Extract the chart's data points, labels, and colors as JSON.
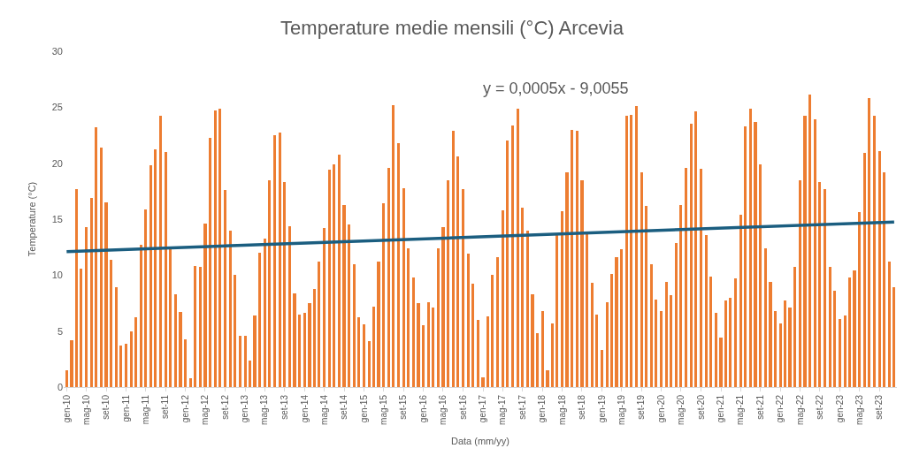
{
  "chart_data": {
    "type": "bar",
    "title": "Temperature medie mensili (°C) Arcevia",
    "xlabel": "Data (mm/yy)",
    "ylabel": "Temperature (°C)",
    "annotations": [
      "y = 0,0005x - 9,0055"
    ],
    "x": [
      "2010-01",
      "2010-02",
      "2010-03",
      "2010-04",
      "2010-05",
      "2010-06",
      "2010-07",
      "2010-08",
      "2010-09",
      "2010-10",
      "2010-11",
      "2010-12",
      "2011-01",
      "2011-02",
      "2011-03",
      "2011-04",
      "2011-05",
      "2011-06",
      "2011-07",
      "2011-08",
      "2011-09",
      "2011-10",
      "2011-11",
      "2011-12",
      "2012-01",
      "2012-02",
      "2012-03",
      "2012-04",
      "2012-05",
      "2012-06",
      "2012-07",
      "2012-08",
      "2012-09",
      "2012-10",
      "2012-11",
      "2012-12",
      "2013-01",
      "2013-02",
      "2013-03",
      "2013-04",
      "2013-05",
      "2013-06",
      "2013-07",
      "2013-08",
      "2013-09",
      "2013-10",
      "2013-11",
      "2013-12",
      "2014-01",
      "2014-02",
      "2014-03",
      "2014-04",
      "2014-05",
      "2014-06",
      "2014-07",
      "2014-08",
      "2014-09",
      "2014-10",
      "2014-11",
      "2014-12",
      "2015-01",
      "2015-02",
      "2015-03",
      "2015-04",
      "2015-05",
      "2015-06",
      "2015-07",
      "2015-08",
      "2015-09",
      "2015-10",
      "2015-11",
      "2015-12",
      "2016-01",
      "2016-02",
      "2016-03",
      "2016-04",
      "2016-05",
      "2016-06",
      "2016-07",
      "2016-08",
      "2016-09",
      "2016-10",
      "2016-11",
      "2016-12",
      "2017-01",
      "2017-02",
      "2017-03",
      "2017-04",
      "2017-05",
      "2017-06",
      "2017-07",
      "2017-08",
      "2017-09",
      "2017-10",
      "2017-11",
      "2017-12",
      "2018-01",
      "2018-02",
      "2018-03",
      "2018-04",
      "2018-05",
      "2018-06",
      "2018-07",
      "2018-08",
      "2018-09",
      "2018-10",
      "2018-11",
      "2018-12",
      "2019-01",
      "2019-02",
      "2019-03",
      "2019-04",
      "2019-05",
      "2019-06",
      "2019-07",
      "2019-08",
      "2019-09",
      "2019-10",
      "2019-11",
      "2019-12",
      "2020-01",
      "2020-02",
      "2020-03",
      "2020-04",
      "2020-05",
      "2020-06",
      "2020-07",
      "2020-08",
      "2020-09",
      "2020-10",
      "2020-11",
      "2020-12",
      "2021-01",
      "2021-02",
      "2021-03",
      "2021-04",
      "2021-05",
      "2021-06",
      "2021-07",
      "2021-08",
      "2021-09",
      "2021-10",
      "2021-11",
      "2021-12",
      "2022-01",
      "2022-02",
      "2022-03",
      "2022-04",
      "2022-05",
      "2022-06",
      "2022-07",
      "2022-08",
      "2022-09",
      "2022-10",
      "2022-11",
      "2022-12",
      "2023-01",
      "2023-02",
      "2023-03",
      "2023-04",
      "2023-05",
      "2023-06",
      "2023-07",
      "2023-08",
      "2023-09",
      "2023-10",
      "2023-11",
      "2023-12"
    ],
    "series": [
      {
        "color": "#ed7d31",
        "values": [
          1.5,
          4.2,
          17.7,
          10.6,
          14.3,
          16.9,
          23.2,
          21.4,
          16.5,
          11.4,
          8.9,
          3.7,
          3.9,
          5.0,
          6.2,
          12.7,
          15.9,
          19.8,
          21.2,
          24.2,
          21.0,
          12.4,
          8.3,
          6.7,
          4.3,
          0.8,
          10.8,
          10.7,
          14.6,
          22.3,
          24.7,
          24.9,
          17.6,
          14.0,
          10.0,
          4.6,
          4.6,
          2.4,
          6.4,
          12.0,
          13.3,
          18.5,
          22.5,
          22.7,
          18.3,
          14.4,
          8.4,
          6.5,
          6.6,
          7.5,
          8.8,
          11.2,
          14.2,
          19.4,
          19.9,
          20.8,
          16.3,
          14.5,
          11.0,
          6.2,
          5.6,
          4.1,
          7.2,
          11.2,
          16.4,
          19.6,
          25.2,
          21.8,
          17.8,
          12.4,
          9.8,
          7.5,
          5.5,
          7.6,
          7.1,
          12.4,
          14.3,
          18.5,
          22.9,
          20.6,
          17.7,
          11.9,
          9.2,
          6.0,
          0.9,
          6.3,
          10.0,
          11.6,
          15.8,
          22.0,
          23.4,
          24.9,
          16.0,
          14.0,
          8.3,
          4.8,
          6.8,
          1.5,
          5.7,
          13.7,
          15.7,
          19.2,
          23.0,
          22.9,
          18.5,
          13.7,
          9.3,
          6.5,
          3.3,
          7.6,
          10.1,
          11.6,
          12.3,
          24.2,
          24.3,
          25.1,
          19.2,
          16.2,
          11.0,
          7.8,
          6.8,
          9.4,
          8.2,
          12.9,
          16.3,
          19.6,
          23.5,
          24.6,
          19.5,
          13.6,
          9.9,
          6.6,
          4.4,
          7.7,
          8.0,
          9.7,
          15.4,
          23.3,
          24.9,
          23.7,
          19.9,
          12.4,
          9.4,
          6.8,
          5.7,
          7.7,
          7.1,
          10.7,
          18.5,
          24.2,
          26.1,
          23.9,
          18.3,
          17.7,
          10.7,
          8.6,
          6.1,
          6.4,
          9.8,
          10.4,
          15.6,
          20.9,
          25.8,
          24.2,
          21.1,
          19.2,
          11.2,
          8.9
        ]
      },
      {
        "type": "line",
        "color": "#1b5e80",
        "x": [
          "2010-01",
          "2023-12"
        ],
        "values": [
          12.1,
          14.75
        ]
      }
    ],
    "xlim": [
      "2009-12-14",
      "2023-12-18"
    ],
    "xticks": [
      {
        "value": "2010-01",
        "label": "gen-10"
      },
      {
        "value": "2010-05",
        "label": "mag-10"
      },
      {
        "value": "2010-09",
        "label": "set-10"
      },
      {
        "value": "2011-01",
        "label": "gen-11"
      },
      {
        "value": "2011-05",
        "label": "mag-11"
      },
      {
        "value": "2011-09",
        "label": "set-11"
      },
      {
        "value": "2012-01",
        "label": "gen-12"
      },
      {
        "value": "2012-05",
        "label": "mag-12"
      },
      {
        "value": "2012-09",
        "label": "set-12"
      },
      {
        "value": "2013-01",
        "label": "gen-13"
      },
      {
        "value": "2013-05",
        "label": "mag-13"
      },
      {
        "value": "2013-09",
        "label": "set-13"
      },
      {
        "value": "2014-01",
        "label": "gen-14"
      },
      {
        "value": "2014-05",
        "label": "mag-14"
      },
      {
        "value": "2014-09",
        "label": "set-14"
      },
      {
        "value": "2015-01",
        "label": "gen-15"
      },
      {
        "value": "2015-05",
        "label": "mag-15"
      },
      {
        "value": "2015-09",
        "label": "set-15"
      },
      {
        "value": "2016-01",
        "label": "gen-16"
      },
      {
        "value": "2016-05",
        "label": "mag-16"
      },
      {
        "value": "2016-09",
        "label": "set-16"
      },
      {
        "value": "2017-01",
        "label": "gen-17"
      },
      {
        "value": "2017-05",
        "label": "mag-17"
      },
      {
        "value": "2017-09",
        "label": "set-17"
      },
      {
        "value": "2018-01",
        "label": "gen-18"
      },
      {
        "value": "2018-05",
        "label": "mag-18"
      },
      {
        "value": "2018-09",
        "label": "set-18"
      },
      {
        "value": "2019-01",
        "label": "gen-19"
      },
      {
        "value": "2019-05",
        "label": "mag-19"
      },
      {
        "value": "2019-09",
        "label": "set-19"
      },
      {
        "value": "2020-01",
        "label": "gen-20"
      },
      {
        "value": "2020-05",
        "label": "mag-20"
      },
      {
        "value": "2020-09",
        "label": "set-20"
      },
      {
        "value": "2021-01",
        "label": "gen-21"
      },
      {
        "value": "2021-05",
        "label": "mag-21"
      },
      {
        "value": "2021-09",
        "label": "set-21"
      },
      {
        "value": "2022-01",
        "label": "gen-22"
      },
      {
        "value": "2022-05",
        "label": "mag-22"
      },
      {
        "value": "2022-09",
        "label": "set-22"
      },
      {
        "value": "2023-01",
        "label": "gen-23"
      },
      {
        "value": "2023-05",
        "label": "mag-23"
      },
      {
        "value": "2023-09",
        "label": "set-23"
      }
    ],
    "ylim": [
      0,
      30
    ],
    "yticks": [
      0,
      5,
      10,
      15,
      20,
      25,
      30
    ]
  }
}
